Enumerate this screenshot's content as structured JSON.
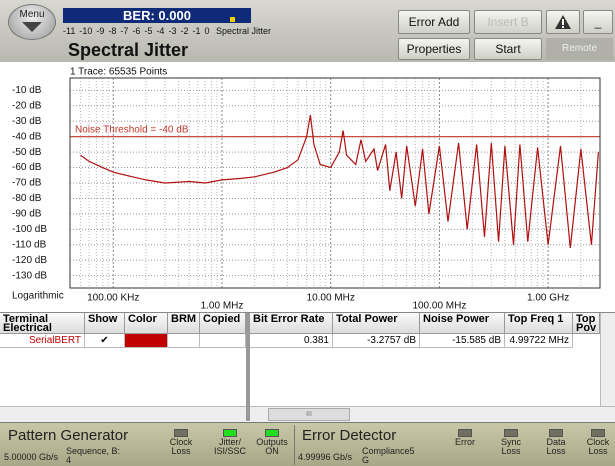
{
  "header": {
    "menu": "Menu",
    "ber": "BER: 0.000",
    "ber_scale": [
      -11,
      -10,
      -9,
      -8,
      -7,
      -6,
      -5,
      -4,
      -3,
      -2,
      -1,
      0
    ],
    "ber_scale_label": "Spectral Jitter",
    "title": "Spectral Jitter",
    "buttons": [
      "Error Add",
      "Insert B",
      "Properties",
      "Start"
    ],
    "minimize": "_",
    "remote": "Remote"
  },
  "plot": {
    "trace_info": "1 Trace: 65535 Points",
    "scale_mode": "Logarithmic",
    "log_x": true,
    "grid": true,
    "xlim": [
      40000,
      3000000000
    ],
    "ylim": [
      -2,
      -138
    ],
    "xticks": [
      {
        "value": 100000,
        "label": "100.00 KHz"
      },
      {
        "value": 1000000,
        "label": "1.00 MHz"
      },
      {
        "value": 10000000,
        "label": "10.00 MHz"
      },
      {
        "value": 100000000,
        "label": "100.00 MHz"
      },
      {
        "value": 1000000000,
        "label": "1.00 GHz"
      }
    ],
    "yticks": [
      {
        "value": -10,
        "label": "-10 dB"
      },
      {
        "value": -20,
        "label": "-20 dB"
      },
      {
        "value": -30,
        "label": "-30 dB"
      },
      {
        "value": -40,
        "label": "-40 dB"
      },
      {
        "value": -50,
        "label": "-50 dB"
      },
      {
        "value": -60,
        "label": "-60 dB"
      },
      {
        "value": -70,
        "label": "-70 dB"
      },
      {
        "value": -80,
        "label": "-80 dB"
      },
      {
        "value": -90,
        "label": "-90 dB"
      },
      {
        "value": -100,
        "label": "-100 dB"
      },
      {
        "value": -110,
        "label": "-110 dB"
      },
      {
        "value": -120,
        "label": "-120 dB"
      },
      {
        "value": -130,
        "label": "-130 dB"
      }
    ],
    "threshold": {
      "value": -40,
      "label": "Noise Threshold = -40 dB",
      "color": "#c0392b"
    },
    "trace": {
      "color": "#b01010",
      "freqs": [
        50000,
        60000,
        80000,
        100000,
        150000,
        200000,
        300000,
        500000,
        700000,
        1000000,
        1500000,
        2000000,
        3000000,
        4000000,
        5000000,
        6000000,
        6500000,
        7000000,
        8000000,
        10000000,
        12000000,
        13000000,
        14000000,
        17000000,
        19000000,
        21000000,
        25000000,
        27000000,
        32000000,
        35000000,
        40000000,
        45000000,
        50000000,
        60000000,
        70000000,
        80000000,
        100000000,
        120000000,
        150000000,
        180000000,
        220000000,
        260000000,
        300000000,
        350000000,
        400000000,
        480000000,
        550000000,
        650000000,
        800000000,
        1000000000,
        1300000000,
        1600000000,
        2000000000,
        2500000000,
        2900000000
      ],
      "values": [
        -52,
        -56,
        -60,
        -63,
        -66,
        -68,
        -70,
        -69,
        -70,
        -68,
        -67,
        -66,
        -63,
        -60,
        -55,
        -40,
        -26,
        -45,
        -58,
        -60,
        -50,
        -36,
        -52,
        -58,
        -42,
        -56,
        -48,
        -62,
        -45,
        -75,
        -50,
        -80,
        -46,
        -85,
        -48,
        -90,
        -46,
        -95,
        -44,
        -100,
        -45,
        -105,
        -44,
        -108,
        -46,
        -110,
        -45,
        -108,
        -47,
        -110,
        -46,
        -112,
        -48,
        -110,
        -50
      ]
    }
  },
  "table": {
    "left_headers": [
      "Terminal Electrical",
      "Show",
      "Color",
      "BRM",
      "Copied"
    ],
    "right_headers": [
      "Bit Error Rate",
      "Total Power",
      "Noise Power",
      "Top Freq 1",
      "Top Pov"
    ],
    "rows": [
      {
        "name": "SerialBERT",
        "show": "✔",
        "color": "#c00000",
        "values": [
          "0.381",
          "-3.2757 dB",
          "-15.585 dB",
          "4.99722 MHz"
        ]
      }
    ],
    "scroll_mark": "III"
  },
  "status": {
    "pg_title": "Pattern Generator",
    "pg_rate": "5.00000 Gb/s",
    "pg_pattern": [
      "Sequence, B:",
      "4"
    ],
    "pg_leds": [
      {
        "label": [
          "Clock",
          "Loss"
        ],
        "on": false
      },
      {
        "label": [
          "Jitter/",
          "ISI/SSC"
        ],
        "on": true
      },
      {
        "label": [
          "Outputs",
          "ON"
        ],
        "on": true
      }
    ],
    "ed_title": "Error Detector",
    "ed_rate": "4.99996 Gb/s",
    "ed_pattern": [
      "Compliance5",
      "G"
    ],
    "ed_leds": [
      {
        "label": [
          "Error"
        ],
        "on": false
      },
      {
        "label": [
          "Sync",
          "Loss"
        ],
        "on": false
      },
      {
        "label": [
          "Data",
          "Loss"
        ],
        "on": false
      },
      {
        "label": [
          "Clock",
          "Loss"
        ],
        "on": false
      }
    ]
  }
}
